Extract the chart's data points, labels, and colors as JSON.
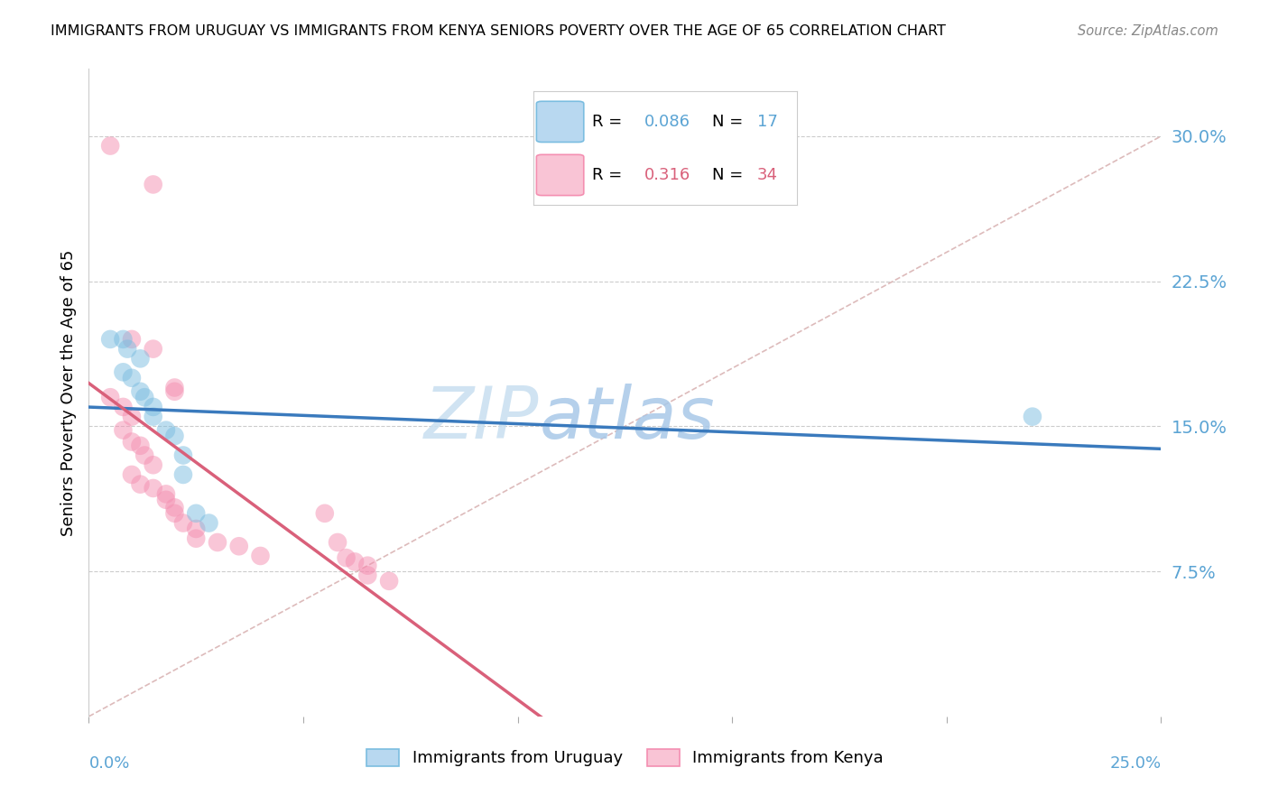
{
  "title": "IMMIGRANTS FROM URUGUAY VS IMMIGRANTS FROM KENYA SENIORS POVERTY OVER THE AGE OF 65 CORRELATION CHART",
  "source": "Source: ZipAtlas.com",
  "ylabel": "Seniors Poverty Over the Age of 65",
  "ytick_values": [
    0.0,
    0.075,
    0.15,
    0.225,
    0.3
  ],
  "ytick_labels": [
    "",
    "7.5%",
    "15.0%",
    "22.5%",
    "30.0%"
  ],
  "xlim": [
    0.0,
    0.25
  ],
  "ylim": [
    0.0,
    0.335
  ],
  "color_uruguay": "#7bbde0",
  "color_kenya": "#f48fb1",
  "watermark_zip": "ZIP",
  "watermark_atlas": "atlas",
  "diag_line_color": "#ddbbbb",
  "regression_line_uruguay_color": "#3a7abd",
  "regression_line_kenya_color": "#d9607a",
  "uruguay_points": [
    [
      0.005,
      0.195
    ],
    [
      0.008,
      0.195
    ],
    [
      0.009,
      0.19
    ],
    [
      0.012,
      0.185
    ],
    [
      0.008,
      0.178
    ],
    [
      0.01,
      0.175
    ],
    [
      0.012,
      0.168
    ],
    [
      0.013,
      0.165
    ],
    [
      0.015,
      0.16
    ],
    [
      0.015,
      0.155
    ],
    [
      0.018,
      0.148
    ],
    [
      0.02,
      0.145
    ],
    [
      0.022,
      0.135
    ],
    [
      0.022,
      0.125
    ],
    [
      0.025,
      0.105
    ],
    [
      0.028,
      0.1
    ],
    [
      0.22,
      0.155
    ]
  ],
  "kenya_points": [
    [
      0.005,
      0.295
    ],
    [
      0.015,
      0.275
    ],
    [
      0.01,
      0.195
    ],
    [
      0.015,
      0.19
    ],
    [
      0.02,
      0.17
    ],
    [
      0.02,
      0.168
    ],
    [
      0.005,
      0.165
    ],
    [
      0.008,
      0.16
    ],
    [
      0.01,
      0.155
    ],
    [
      0.008,
      0.148
    ],
    [
      0.01,
      0.142
    ],
    [
      0.012,
      0.14
    ],
    [
      0.013,
      0.135
    ],
    [
      0.015,
      0.13
    ],
    [
      0.01,
      0.125
    ],
    [
      0.012,
      0.12
    ],
    [
      0.015,
      0.118
    ],
    [
      0.018,
      0.115
    ],
    [
      0.018,
      0.112
    ],
    [
      0.02,
      0.108
    ],
    [
      0.02,
      0.105
    ],
    [
      0.022,
      0.1
    ],
    [
      0.025,
      0.097
    ],
    [
      0.025,
      0.092
    ],
    [
      0.03,
      0.09
    ],
    [
      0.035,
      0.088
    ],
    [
      0.04,
      0.083
    ],
    [
      0.055,
      0.105
    ],
    [
      0.058,
      0.09
    ],
    [
      0.06,
      0.082
    ],
    [
      0.062,
      0.08
    ],
    [
      0.065,
      0.078
    ],
    [
      0.065,
      0.073
    ],
    [
      0.07,
      0.07
    ]
  ]
}
